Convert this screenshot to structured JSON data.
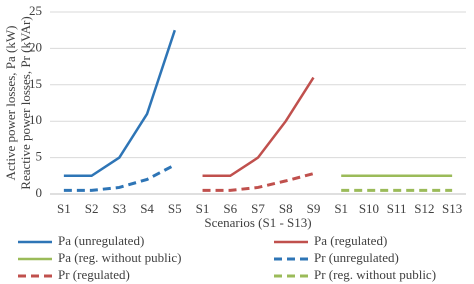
{
  "chart_data": {
    "type": "line",
    "y_label": [
      "Active power losses, Pa (kW)",
      "Reactive power losses, Pr (kVAr)"
    ],
    "x_label": "Scenarios (S1 - S13)",
    "categories": [
      "S1",
      "S2",
      "S3",
      "S4",
      "S5",
      "S1",
      "S6",
      "S7",
      "S8",
      "S9",
      "S1",
      "S10",
      "S11",
      "S12",
      "S13"
    ],
    "ylim": [
      0,
      25
    ],
    "yticks": [
      0,
      5,
      10,
      15,
      20,
      25
    ],
    "grid": true,
    "series": [
      {
        "name": "Pa (unregulated)",
        "color": "#2e75b6",
        "dashed": false,
        "values": [
          2.5,
          2.5,
          5,
          11,
          22.5,
          null,
          null,
          null,
          null,
          null,
          null,
          null,
          null,
          null,
          null
        ]
      },
      {
        "name": "Pa (regulated)",
        "color": "#c0504d",
        "dashed": false,
        "values": [
          null,
          null,
          null,
          null,
          null,
          2.5,
          2.5,
          5,
          10,
          16,
          null,
          null,
          null,
          null,
          null
        ]
      },
      {
        "name": "Pa (reg. without public)",
        "color": "#9bbb59",
        "dashed": false,
        "values": [
          null,
          null,
          null,
          null,
          null,
          null,
          null,
          null,
          null,
          null,
          2.5,
          2.5,
          2.5,
          2.5,
          2.5
        ]
      },
      {
        "name": "Pr (unregulated)",
        "color": "#2e75b6",
        "dashed": true,
        "values": [
          0.5,
          0.5,
          0.9,
          2,
          4,
          null,
          null,
          null,
          null,
          null,
          null,
          null,
          null,
          null,
          null
        ]
      },
      {
        "name": "Pr (regulated)",
        "color": "#c0504d",
        "dashed": true,
        "values": [
          null,
          null,
          null,
          null,
          null,
          0.5,
          0.5,
          0.9,
          1.8,
          2.8,
          null,
          null,
          null,
          null,
          null
        ]
      },
      {
        "name": "Pr (reg. without public)",
        "color": "#9bbb59",
        "dashed": true,
        "values": [
          null,
          null,
          null,
          null,
          null,
          null,
          null,
          null,
          null,
          null,
          0.5,
          0.5,
          0.5,
          0.5,
          0.5
        ]
      }
    ]
  }
}
